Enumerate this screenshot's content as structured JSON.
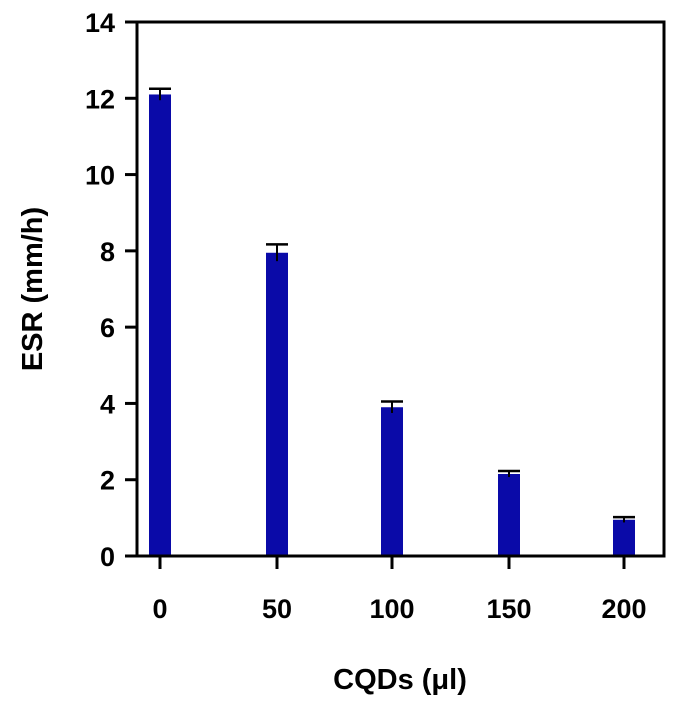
{
  "chart_data": {
    "type": "bar",
    "title": "",
    "xlabel": "CQDs (μl)",
    "ylabel": "ESR (mm/h)",
    "categories": [
      "0",
      "50",
      "100",
      "150",
      "200"
    ],
    "series": [
      {
        "values": [
          12.1,
          7.95,
          3.9,
          2.15,
          0.95
        ],
        "errors": [
          0.15,
          0.22,
          0.15,
          0.08,
          0.07
        ],
        "color": "#0a0aa8"
      }
    ],
    "ylim": [
      0,
      14
    ],
    "yticks": [
      "0",
      "2",
      "4",
      "6",
      "8",
      "10",
      "12",
      "14"
    ],
    "grid": false,
    "legend": "none"
  }
}
